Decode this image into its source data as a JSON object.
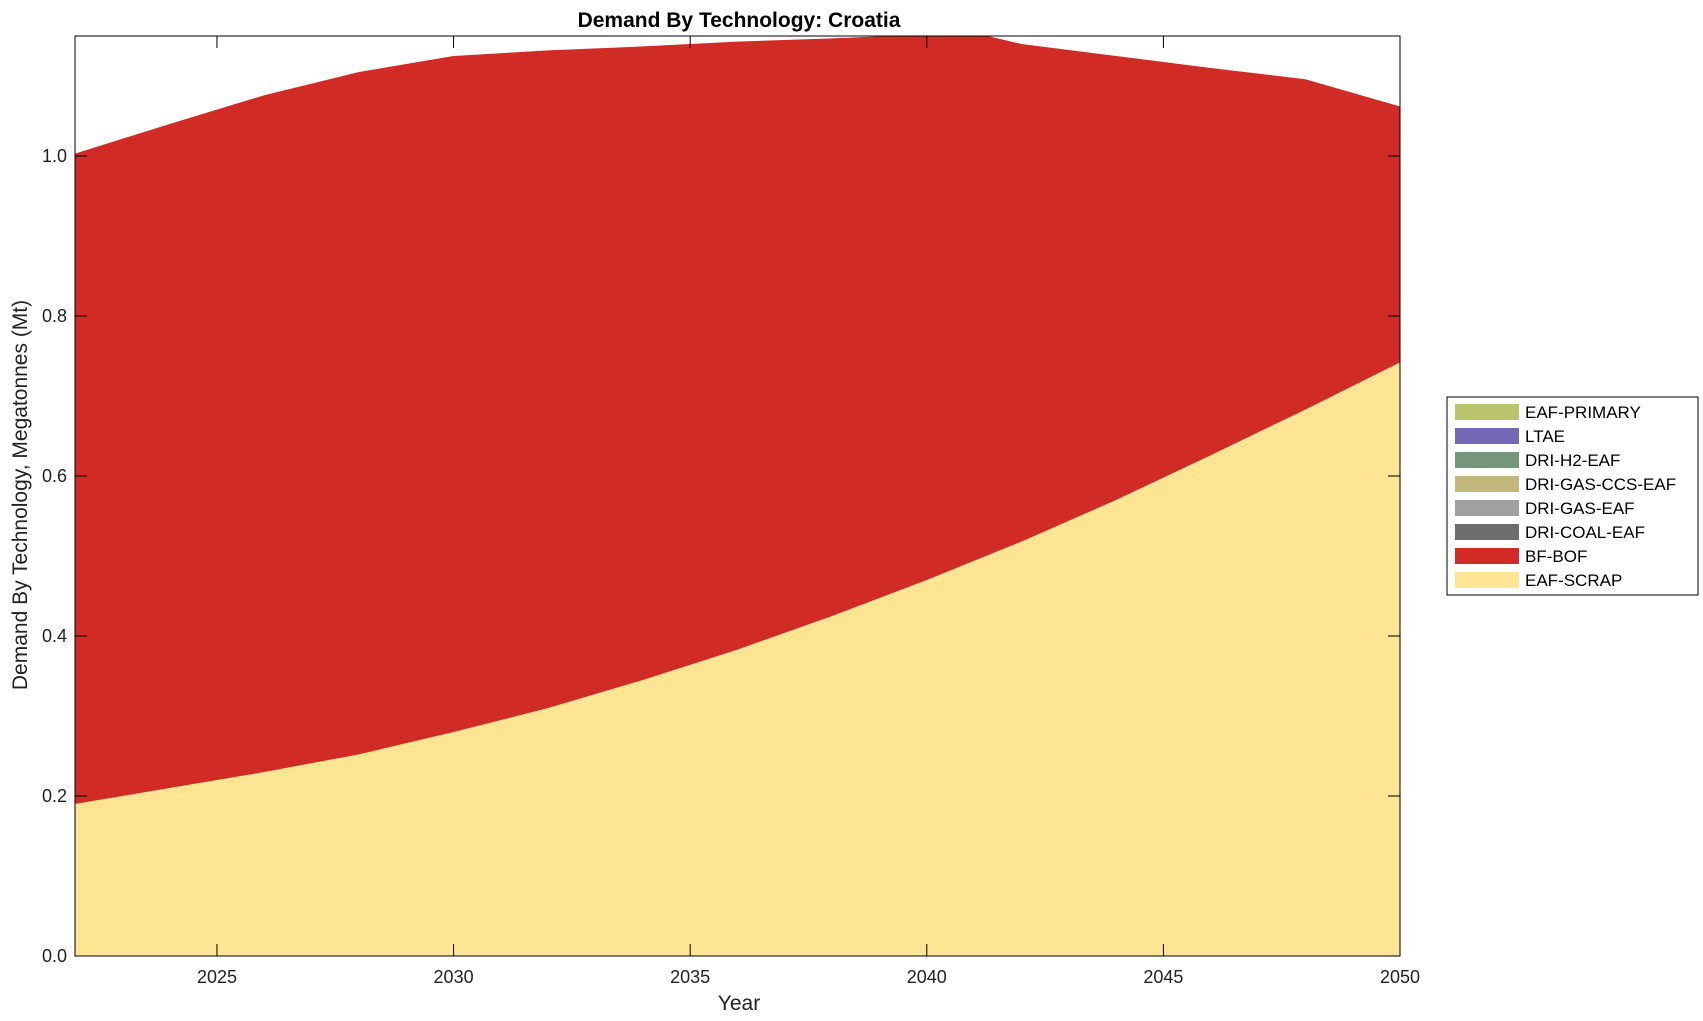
{
  "chart_data": {
    "type": "area",
    "stacked": true,
    "title": "Demand By Technology: Croatia",
    "xlabel": "Year",
    "ylabel": "Demand By Technology, Megatonnes (Mt)",
    "xlim": [
      2022,
      2050
    ],
    "ylim": [
      0,
      1.15
    ],
    "xticks": [
      2025,
      2030,
      2035,
      2040,
      2045,
      2050
    ],
    "xtick_labels": [
      "2025",
      "2030",
      "2035",
      "2040",
      "2045",
      "2050"
    ],
    "yticks": [
      0,
      0.2,
      0.4,
      0.6,
      0.8,
      1.0
    ],
    "ytick_labels": [
      "0.0",
      "0.2",
      "0.4",
      "0.6",
      "0.8",
      "1.0"
    ],
    "grid": false,
    "legend_position": "right",
    "x": [
      2022,
      2024,
      2026,
      2028,
      2030,
      2032,
      2034,
      2036,
      2038,
      2040,
      2041,
      2042,
      2044,
      2046,
      2048,
      2050
    ],
    "series": [
      {
        "name": "EAF-SCRAP",
        "color": "#fde594",
        "values": [
          0.19,
          0.21,
          0.23,
          0.252,
          0.28,
          0.31,
          0.345,
          0.383,
          0.425,
          0.47,
          0.494,
          0.518,
          0.57,
          0.626,
          0.683,
          0.742
        ]
      },
      {
        "name": "BF-BOF",
        "color": "#d12b25",
        "values": [
          0.813,
          0.83,
          0.846,
          0.853,
          0.845,
          0.822,
          0.792,
          0.76,
          0.722,
          0.682,
          0.66,
          0.622,
          0.555,
          0.484,
          0.413,
          0.32
        ]
      },
      {
        "name": "DRI-COAL-EAF",
        "color": "#6e6e6e",
        "values": [
          0,
          0,
          0,
          0,
          0,
          0,
          0,
          0,
          0,
          0,
          0,
          0,
          0,
          0,
          0,
          0
        ]
      },
      {
        "name": "DRI-GAS-EAF",
        "color": "#a0a0a0",
        "values": [
          0,
          0,
          0,
          0,
          0,
          0,
          0,
          0,
          0,
          0,
          0,
          0,
          0,
          0,
          0,
          0
        ]
      },
      {
        "name": "DRI-GAS-CCS-EAF",
        "color": "#c4b97c",
        "values": [
          0,
          0,
          0,
          0,
          0,
          0,
          0,
          0,
          0,
          0,
          0,
          0,
          0,
          0,
          0,
          0
        ]
      },
      {
        "name": "DRI-H2-EAF",
        "color": "#75977c",
        "values": [
          0,
          0,
          0,
          0,
          0,
          0,
          0,
          0,
          0,
          0,
          0,
          0,
          0,
          0,
          0,
          0
        ]
      },
      {
        "name": "LTAE",
        "color": "#7468b6",
        "values": [
          0,
          0,
          0,
          0,
          0,
          0,
          0,
          0,
          0,
          0,
          0,
          0,
          0,
          0,
          0,
          0
        ]
      },
      {
        "name": "EAF-PRIMARY",
        "color": "#b9c46b",
        "values": [
          0,
          0,
          0,
          0,
          0,
          0,
          0,
          0,
          0,
          0,
          0,
          0,
          0,
          0,
          0,
          0
        ]
      }
    ],
    "legend_order": [
      "EAF-PRIMARY",
      "LTAE",
      "DRI-H2-EAF",
      "DRI-GAS-CCS-EAF",
      "DRI-GAS-EAF",
      "DRI-COAL-EAF",
      "BF-BOF",
      "EAF-SCRAP"
    ]
  }
}
